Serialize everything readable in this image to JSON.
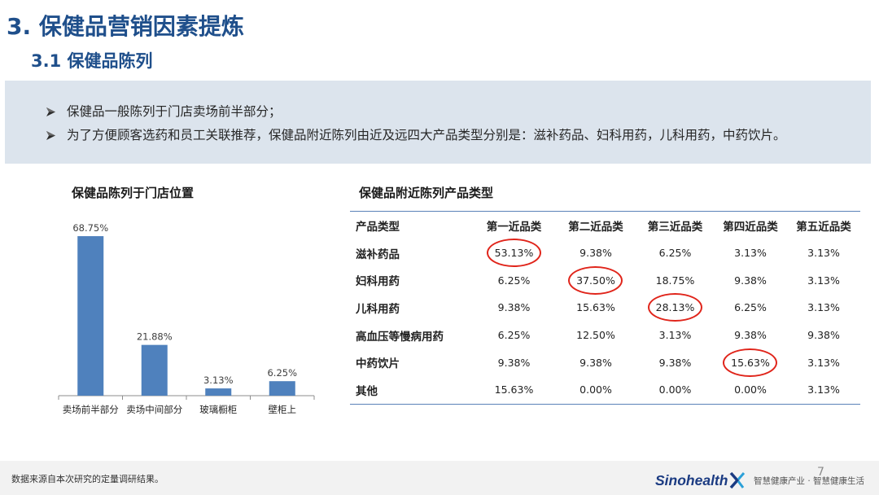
{
  "slide": {
    "title": "3. 保健品营销因素提炼",
    "subtitle": "3.1 保健品陈列",
    "page_number": "7"
  },
  "bullets": {
    "marker_icon": "arrowhead-bullet-icon",
    "items": [
      "保健品一般陈列于门店卖场前半部分；",
      "为了方便顾客选药和员工关联推荐，保健品附近陈列由近及远四大产品类型分别是：滋补药品、妇科用药，儿科用药，中药饮片。"
    ]
  },
  "chart_data": [
    {
      "type": "bar",
      "title": "保健品陈列于门店位置",
      "categories": [
        "卖场前半部分",
        "卖场中间部分",
        "玻璃橱柜",
        "壁柜上"
      ],
      "values": [
        68.75,
        21.88,
        3.13,
        6.25
      ],
      "value_labels": [
        "68.75%",
        "21.88%",
        "3.13%",
        "6.25%"
      ],
      "ylim": [
        0,
        80
      ],
      "grid": false,
      "bar_color": "#4f81bd"
    },
    {
      "type": "table",
      "title": "保健品附近陈列产品类型",
      "columns": [
        "产品类型",
        "第一近品类",
        "第二近品类",
        "第三近品类",
        "第四近品类",
        "第五近品类"
      ],
      "rows": [
        {
          "label": "滋补药品",
          "cells": [
            {
              "text": "53.13%",
              "circled": true
            },
            {
              "text": "9.38%"
            },
            {
              "text": "6.25%"
            },
            {
              "text": "3.13%"
            },
            {
              "text": "3.13%"
            }
          ]
        },
        {
          "label": "妇科用药",
          "cells": [
            {
              "text": "6.25%"
            },
            {
              "text": "37.50%",
              "circled": true
            },
            {
              "text": "18.75%"
            },
            {
              "text": "9.38%"
            },
            {
              "text": "3.13%"
            }
          ]
        },
        {
          "label": "儿科用药",
          "cells": [
            {
              "text": "9.38%"
            },
            {
              "text": "15.63%"
            },
            {
              "text": "28.13%",
              "circled": true
            },
            {
              "text": "6.25%"
            },
            {
              "text": "3.13%"
            }
          ]
        },
        {
          "label": "高血压等慢病用药",
          "cells": [
            {
              "text": "6.25%"
            },
            {
              "text": "12.50%"
            },
            {
              "text": "3.13%"
            },
            {
              "text": "9.38%"
            },
            {
              "text": "9.38%"
            }
          ]
        },
        {
          "label": "中药饮片",
          "cells": [
            {
              "text": "9.38%"
            },
            {
              "text": "9.38%"
            },
            {
              "text": "9.38%"
            },
            {
              "text": "15.63%",
              "circled": true
            },
            {
              "text": "3.13%"
            }
          ]
        },
        {
          "label": "其他",
          "cells": [
            {
              "text": "15.63%"
            },
            {
              "text": "0.00%"
            },
            {
              "text": "0.00%"
            },
            {
              "text": "0.00%"
            },
            {
              "text": "3.13%"
            }
          ]
        }
      ],
      "highlight_color": "#e0251b"
    }
  ],
  "footer": {
    "source_note": "数据来源自本次研究的定量调研结果。",
    "logo_text": "Sinohealth",
    "logo_icon": "logo-x-mark-icon",
    "tagline": "智慧健康产业 · 智慧健康生活"
  }
}
